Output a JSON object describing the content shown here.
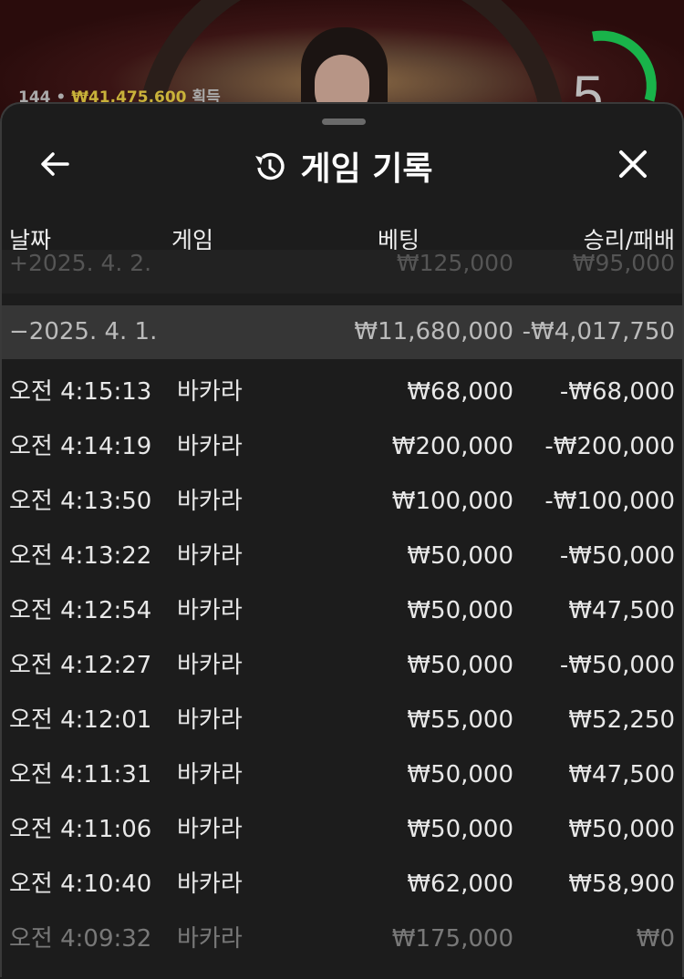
{
  "stream": {
    "players": "144",
    "winnings": "₩41,475,600",
    "winnings_label": "획득",
    "timer": "5",
    "timer_color": "#19b34a"
  },
  "header": {
    "title": "게임 기록",
    "back_icon": "arrow-left-icon",
    "history_icon": "history-icon",
    "close_icon": "close-icon"
  },
  "columns": {
    "date": "날짜",
    "game": "게임",
    "bet": "베팅",
    "result": "승리/패배"
  },
  "previous_group": {
    "date": "+2025. 4. 2.",
    "bet": "₩125,000",
    "result": "₩95,000"
  },
  "group": {
    "date": "−2025. 4. 1.",
    "bet": "₩11,680,000",
    "result": "-₩4,017,750"
  },
  "rows": [
    {
      "time": "오전 4:15:13",
      "game": "바카라",
      "bet": "₩68,000",
      "result": "-₩68,000"
    },
    {
      "time": "오전 4:14:19",
      "game": "바카라",
      "bet": "₩200,000",
      "result": "-₩200,000"
    },
    {
      "time": "오전 4:13:50",
      "game": "바카라",
      "bet": "₩100,000",
      "result": "-₩100,000"
    },
    {
      "time": "오전 4:13:22",
      "game": "바카라",
      "bet": "₩50,000",
      "result": "-₩50,000"
    },
    {
      "time": "오전 4:12:54",
      "game": "바카라",
      "bet": "₩50,000",
      "result": "₩47,500"
    },
    {
      "time": "오전 4:12:27",
      "game": "바카라",
      "bet": "₩50,000",
      "result": "-₩50,000"
    },
    {
      "time": "오전 4:12:01",
      "game": "바카라",
      "bet": "₩55,000",
      "result": "₩52,250"
    },
    {
      "time": "오전 4:11:31",
      "game": "바카라",
      "bet": "₩50,000",
      "result": "₩47,500"
    },
    {
      "time": "오전 4:11:06",
      "game": "바카라",
      "bet": "₩50,000",
      "result": "₩50,000"
    },
    {
      "time": "오전 4:10:40",
      "game": "바카라",
      "bet": "₩62,000",
      "result": "₩58,900"
    },
    {
      "time": "오전 4:09:32",
      "game": "바카라",
      "bet": "₩175,000",
      "result": "₩0"
    }
  ]
}
